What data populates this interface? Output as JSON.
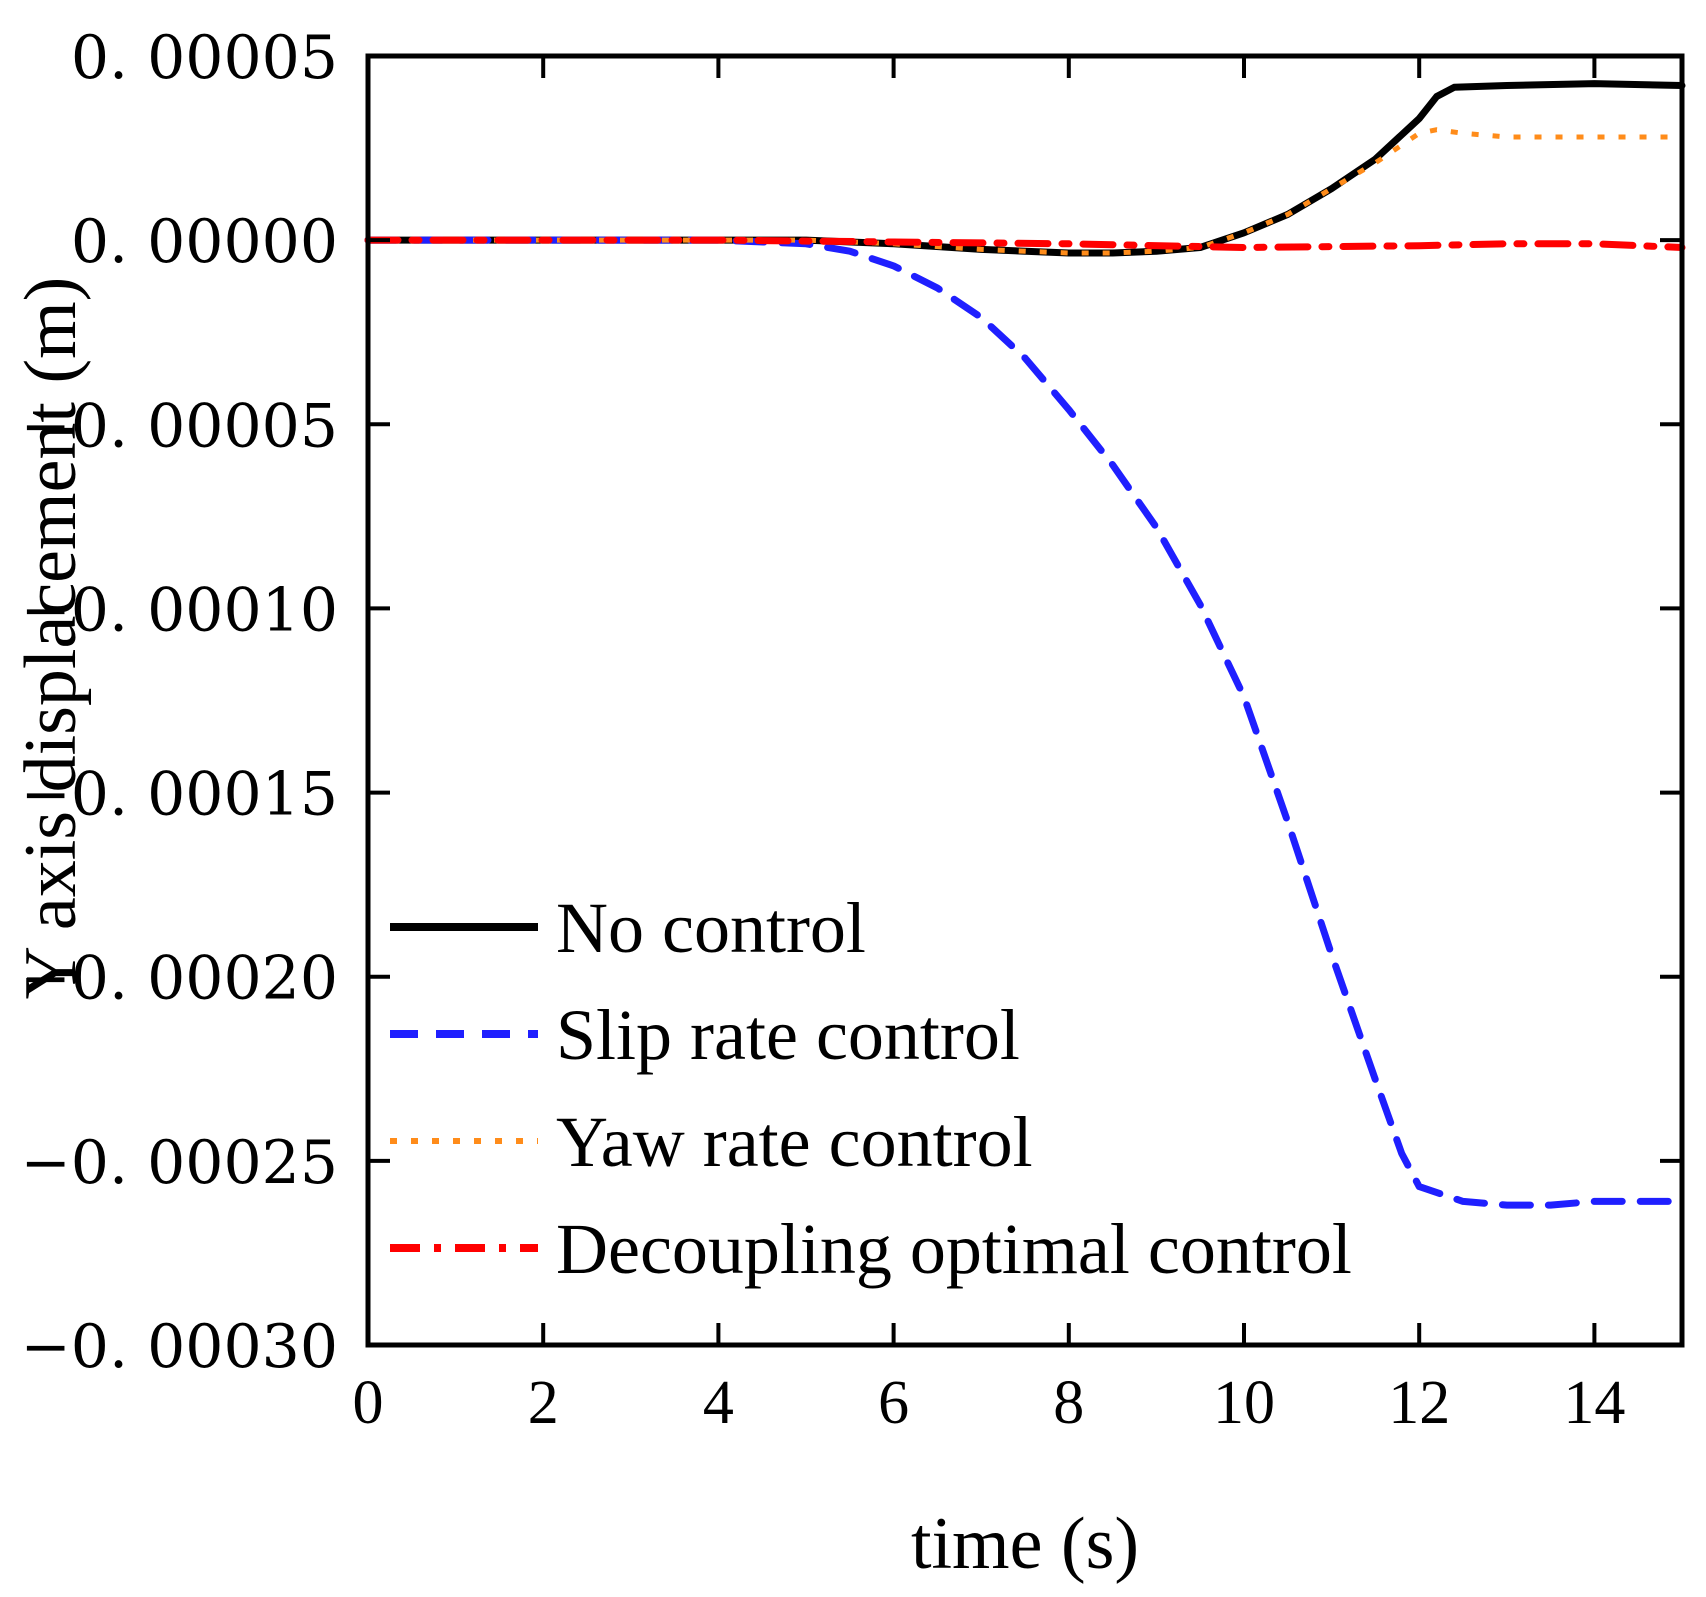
{
  "chart_data": {
    "type": "line",
    "title": "",
    "xlabel": "time (s)",
    "ylabel": "Y axis displacement (m)",
    "xlim": [
      0,
      15
    ],
    "ylim": [
      -0.0003,
      5e-05
    ],
    "x_ticks": [
      0,
      2,
      4,
      6,
      8,
      10,
      12,
      14
    ],
    "x_tick_labels": [
      "0",
      "2",
      "4",
      "6",
      "8",
      "10",
      "12",
      "14"
    ],
    "y_ticks": [
      5e-05,
      0,
      -5e-05,
      -0.0001,
      -0.00015,
      -0.0002,
      -0.00025,
      -0.0003
    ],
    "y_tick_labels": [
      "0. 00005",
      "0. 00000",
      "−0. 00005",
      "−0. 00010",
      "−0. 00015",
      "−0. 00020",
      "−0. 00025",
      "−0. 00030"
    ],
    "grid": false,
    "legend_position": "lower-left",
    "series": [
      {
        "name": "No control",
        "color": "#000000",
        "style": "solid",
        "x": [
          0,
          2,
          4,
          5,
          6,
          7,
          8,
          8.5,
          9,
          9.5,
          10,
          10.5,
          11,
          11.5,
          12,
          12.2,
          12.4,
          13,
          14,
          15
        ],
        "y": [
          0,
          0,
          0,
          0,
          -1e-06,
          -2.5e-06,
          -3.5e-06,
          -3.5e-06,
          -3e-06,
          -2e-06,
          2e-06,
          7e-06,
          1.4e-05,
          2.2e-05,
          3.3e-05,
          3.9e-05,
          4.15e-05,
          4.2e-05,
          4.25e-05,
          4.2e-05
        ]
      },
      {
        "name": "Slip rate control",
        "color": "#1f1fff",
        "style": "dashed",
        "x": [
          0,
          2,
          4,
          5,
          5.5,
          6,
          6.5,
          7,
          7.5,
          8,
          8.5,
          9,
          9.5,
          10,
          10.5,
          11,
          11.5,
          11.8,
          12,
          12.5,
          13,
          13.5,
          14,
          15
        ],
        "y": [
          0,
          0,
          0,
          -1e-06,
          -3e-06,
          -7e-06,
          -1.3e-05,
          -2.1e-05,
          -3.2e-05,
          -4.6e-05,
          -6.1e-05,
          -7.8e-05,
          -9.9e-05,
          -0.000124,
          -0.000158,
          -0.000194,
          -0.000228,
          -0.000248,
          -0.000257,
          -0.000261,
          -0.000262,
          -0.000262,
          -0.000261,
          -0.000261
        ]
      },
      {
        "name": "Yaw  rate control",
        "color": "#ff8c1a",
        "style": "dotted",
        "x": [
          0,
          2,
          4,
          5,
          6,
          7,
          8,
          8.5,
          9,
          9.5,
          10,
          10.5,
          11,
          11.5,
          12,
          12.2,
          12.5,
          13,
          14,
          15
        ],
        "y": [
          0,
          0,
          0,
          0,
          -1e-06,
          -2.5e-06,
          -3.5e-06,
          -3.5e-06,
          -3e-06,
          -2e-06,
          2e-06,
          7e-06,
          1.4e-05,
          2.1e-05,
          2.9e-05,
          3e-05,
          2.9e-05,
          2.8e-05,
          2.8e-05,
          2.8e-05
        ]
      },
      {
        "name": "Decoupling optimal control",
        "color": "#ff0000",
        "style": "dashdot",
        "x": [
          0,
          2,
          4,
          6,
          8,
          10,
          12,
          13,
          14,
          15
        ],
        "y": [
          0,
          0,
          0,
          -5e-07,
          -1e-06,
          -2e-06,
          -1.5e-06,
          -1e-06,
          -1e-06,
          -2e-06
        ]
      }
    ]
  }
}
